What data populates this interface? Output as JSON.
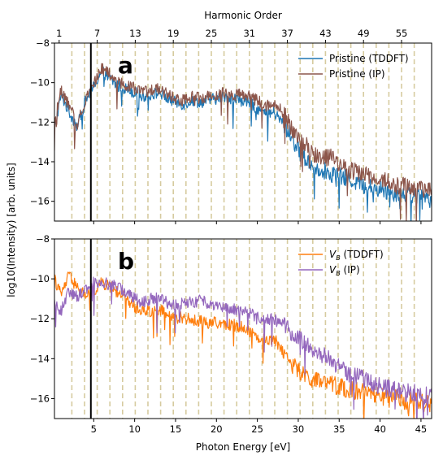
{
  "figure": {
    "top_axis_title": "Harmonic Order",
    "x_title": "Photon Energy [eV]",
    "y_title": "log10(Intensity) [arb. units]"
  },
  "chart_data": [
    {
      "type": "line",
      "panel_label": "a",
      "xlim": [
        0.2,
        46.3
      ],
      "ylim": [
        -17,
        -8
      ],
      "x_ticks": [
        5,
        10,
        15,
        20,
        25,
        30,
        35,
        40,
        45
      ],
      "y_ticks": [
        -8,
        -10,
        -12,
        -14,
        -16
      ],
      "y_tick_labels": [
        "−8",
        "−10",
        "−12",
        "−14",
        "−16"
      ],
      "top_ticks": [
        1,
        7,
        13,
        19,
        25,
        31,
        37,
        43,
        49,
        55
      ],
      "harmonic_spacing_ev": 0.775,
      "harmonic_lines_odd_orders": [
        3,
        57
      ],
      "vertical_marker_x": 4.65,
      "legend_position": "upper-right",
      "series": [
        {
          "name": "Pristine (TDDFT)",
          "color": "#1f77b4",
          "x": [
            0.2,
            1,
            2,
            3,
            4,
            5,
            6,
            7,
            8,
            9,
            10,
            11,
            12,
            13,
            14,
            15,
            16,
            17,
            18,
            19,
            20,
            21,
            22,
            23,
            24,
            25,
            26,
            27,
            28,
            29,
            30,
            31,
            32,
            33,
            34,
            35,
            36,
            37,
            38,
            39,
            40,
            41,
            42,
            43,
            44,
            45,
            46.3
          ],
          "y": [
            -12.4,
            -10.6,
            -11.5,
            -12.2,
            -10.9,
            -10.2,
            -9.4,
            -9.8,
            -10.2,
            -10.3,
            -10.5,
            -10.7,
            -10.6,
            -10.5,
            -10.8,
            -11.0,
            -11.1,
            -10.9,
            -11.0,
            -10.9,
            -10.8,
            -10.7,
            -10.8,
            -10.9,
            -11.0,
            -11.3,
            -11.6,
            -11.5,
            -12.0,
            -12.6,
            -13.4,
            -13.9,
            -14.3,
            -14.4,
            -14.6,
            -14.7,
            -14.9,
            -15.0,
            -15.2,
            -15.3,
            -15.4,
            -15.5,
            -15.6,
            -15.6,
            -15.7,
            -15.8,
            -15.9
          ]
        },
        {
          "name": "Pristine (IP)",
          "color": "#8c564b",
          "x": [
            0.2,
            1,
            2,
            3,
            4,
            5,
            6,
            7,
            8,
            9,
            10,
            11,
            12,
            13,
            14,
            15,
            16,
            17,
            18,
            19,
            20,
            21,
            22,
            23,
            24,
            25,
            26,
            27,
            28,
            29,
            30,
            31,
            32,
            33,
            34,
            35,
            36,
            37,
            38,
            39,
            40,
            41,
            42,
            43,
            44,
            45,
            46.3
          ],
          "y": [
            -12.0,
            -10.4,
            -11.2,
            -12.1,
            -10.8,
            -10.0,
            -9.3,
            -9.6,
            -10.0,
            -10.1,
            -10.3,
            -10.5,
            -10.4,
            -10.3,
            -10.6,
            -10.8,
            -10.9,
            -10.7,
            -10.8,
            -10.7,
            -10.6,
            -10.5,
            -10.6,
            -10.6,
            -10.7,
            -10.9,
            -11.2,
            -11.0,
            -11.4,
            -12.1,
            -12.9,
            -13.2,
            -13.6,
            -13.8,
            -13.8,
            -14.1,
            -14.4,
            -14.5,
            -14.6,
            -14.8,
            -14.9,
            -15.0,
            -15.2,
            -15.2,
            -15.3,
            -15.4,
            -15.5
          ]
        }
      ]
    },
    {
      "type": "line",
      "panel_label": "b",
      "xlim": [
        0.2,
        46.3
      ],
      "ylim": [
        -17,
        -8
      ],
      "x_ticks": [
        5,
        10,
        15,
        20,
        25,
        30,
        35,
        40,
        45
      ],
      "x_tick_labels": [
        "5",
        "10",
        "15",
        "20",
        "25",
        "30",
        "35",
        "40",
        "45"
      ],
      "y_ticks": [
        -8,
        -10,
        -12,
        -14,
        -16
      ],
      "y_tick_labels": [
        "−8",
        "−10",
        "−12",
        "−14",
        "−16"
      ],
      "harmonic_spacing_ev": 0.775,
      "harmonic_lines_odd_orders": [
        3,
        57
      ],
      "vertical_marker_x": 4.65,
      "legend_position": "upper-right",
      "series": [
        {
          "name": "V_B (TDDFT)",
          "legend_main": "V",
          "legend_sub": "B",
          "legend_rest": " (TDDFT)",
          "color": "#ff7f0e",
          "x": [
            0.2,
            1,
            2,
            3,
            4,
            5,
            6,
            7,
            8,
            9,
            10,
            11,
            12,
            13,
            14,
            15,
            16,
            17,
            18,
            19,
            20,
            21,
            22,
            23,
            24,
            25,
            26,
            27,
            28,
            29,
            30,
            31,
            32,
            33,
            34,
            35,
            36,
            37,
            38,
            39,
            40,
            41,
            42,
            43,
            44,
            45,
            46.3
          ],
          "y": [
            -10.0,
            -10.8,
            -9.8,
            -10.5,
            -10.8,
            -10.6,
            -10.2,
            -10.4,
            -10.7,
            -11.0,
            -11.4,
            -11.6,
            -11.6,
            -11.5,
            -11.8,
            -12.0,
            -11.9,
            -12.1,
            -12.1,
            -12.2,
            -12.2,
            -12.3,
            -12.3,
            -12.4,
            -12.6,
            -12.9,
            -13.1,
            -13.0,
            -13.5,
            -14.2,
            -14.6,
            -14.9,
            -15.1,
            -15.2,
            -15.3,
            -15.4,
            -15.5,
            -15.6,
            -15.7,
            -15.8,
            -15.9,
            -16.0,
            -16.0,
            -16.1,
            -16.1,
            -16.2,
            -16.3
          ]
        },
        {
          "name": "V_B (IP)",
          "legend_main": "V",
          "legend_sub": "B",
          "legend_rest": " (IP)",
          "color": "#9467bd",
          "x": [
            0.2,
            1,
            2,
            3,
            4,
            5,
            6,
            7,
            8,
            9,
            10,
            11,
            12,
            13,
            14,
            15,
            16,
            17,
            18,
            19,
            20,
            21,
            22,
            23,
            24,
            25,
            26,
            27,
            28,
            29,
            30,
            31,
            32,
            33,
            34,
            35,
            36,
            37,
            38,
            39,
            40,
            41,
            42,
            43,
            44,
            45,
            46.3
          ],
          "y": [
            -11.2,
            -11.6,
            -10.6,
            -10.9,
            -10.5,
            -10.2,
            -10.1,
            -10.3,
            -10.4,
            -10.7,
            -11.0,
            -11.2,
            -11.0,
            -11.0,
            -11.2,
            -11.3,
            -11.2,
            -11.2,
            -11.1,
            -11.2,
            -11.3,
            -11.4,
            -11.5,
            -11.6,
            -11.7,
            -11.9,
            -12.0,
            -12.0,
            -12.3,
            -12.6,
            -12.9,
            -13.3,
            -13.6,
            -13.8,
            -14.1,
            -14.4,
            -14.7,
            -14.9,
            -15.0,
            -15.2,
            -15.4,
            -15.5,
            -15.6,
            -15.7,
            -15.7,
            -15.8,
            -15.9
          ]
        }
      ]
    }
  ]
}
